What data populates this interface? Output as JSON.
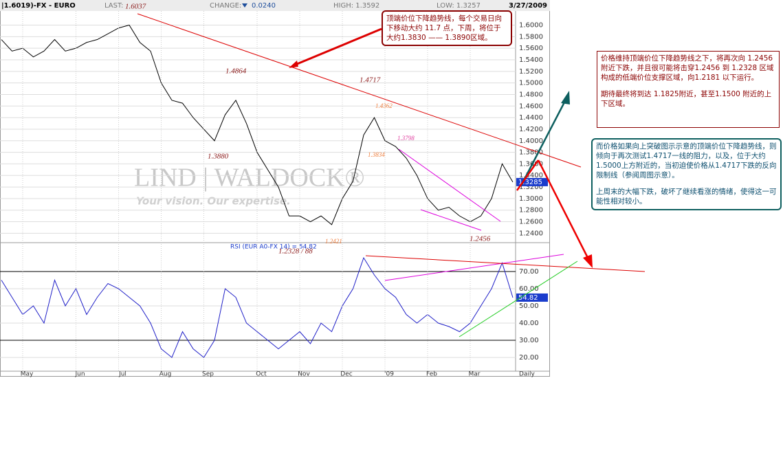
{
  "header": {
    "symbol": "|1.6019)-FX - EURO",
    "last_label": "LAST:",
    "change_label": "CHANGE:",
    "change": "0.0240",
    "high": "HIGH: 1.3592",
    "low": "LOW: 1.3257",
    "date": "3/27/2009"
  },
  "watermark": {
    "brand": "LIND | WALDOCK®",
    "tagline": "Your vision. Our expertise."
  },
  "chart_data": [
    {
      "type": "line",
      "color": "#000000",
      "values": [
        1.575,
        1.555,
        1.56,
        1.545,
        1.555,
        1.575,
        1.555,
        1.56,
        1.57,
        1.575,
        1.585,
        1.595,
        1.6,
        1.57,
        1.555,
        1.5,
        1.47,
        1.465,
        1.44,
        1.42,
        1.4,
        1.445,
        1.47,
        1.43,
        1.38,
        1.35,
        1.32,
        1.27,
        1.27,
        1.26,
        1.27,
        1.255,
        1.3,
        1.33,
        1.41,
        1.44,
        1.4,
        1.39,
        1.37,
        1.34,
        1.3,
        1.28,
        1.285,
        1.27,
        1.26,
        1.27,
        1.3,
        1.36,
        1.3285
      ],
      "ylim": [
        1.225,
        1.622
      ],
      "yticks": [
        {
          "value": 1.6,
          "label": "1.6000"
        },
        {
          "value": 1.58,
          "label": "1.5800"
        },
        {
          "value": 1.56,
          "label": "1.5600"
        },
        {
          "value": 1.54,
          "label": "1.5400"
        },
        {
          "value": 1.52,
          "label": "1.5200"
        },
        {
          "value": 1.5,
          "label": "1.5000"
        },
        {
          "value": 1.48,
          "label": "1.4800"
        },
        {
          "value": 1.46,
          "label": "1.4600"
        },
        {
          "value": 1.44,
          "label": "1.4400"
        },
        {
          "value": 1.42,
          "label": "1.4200"
        },
        {
          "value": 1.4,
          "label": "1.4000"
        },
        {
          "value": 1.38,
          "label": "1.3800"
        },
        {
          "value": 1.36,
          "label": "1.3600"
        },
        {
          "value": 1.34,
          "label": "1.3400"
        },
        {
          "value": 1.32,
          "label": "1.3200"
        },
        {
          "value": 1.3,
          "label": "1.3000"
        },
        {
          "value": 1.28,
          "label": "1.2800"
        },
        {
          "value": 1.26,
          "label": "1.2600"
        },
        {
          "value": 1.24,
          "label": "1.2400"
        }
      ],
      "grid": true,
      "annotations": [
        "1.6037",
        "1.4864",
        "1.3880",
        "1.4717",
        "1.4362",
        "1.3798",
        "1.3834",
        "1.2456",
        "1.2328 / 88",
        "1.2421"
      ]
    },
    {
      "type": "line",
      "title": "RSI (EUR A0-FX 14) = 54.82",
      "color": "#2020c8",
      "categories": [
        null,
        null,
        "May",
        null,
        null,
        null,
        null,
        "Jun",
        null,
        null,
        null,
        "Jul",
        null,
        null,
        null,
        "Aug",
        null,
        null,
        null,
        "Sep",
        null,
        null,
        null,
        null,
        "Oct",
        null,
        null,
        null,
        "Nov",
        null,
        null,
        null,
        "Dec",
        null,
        null,
        null,
        "'09",
        null,
        null,
        null,
        "Feb",
        null,
        null,
        null,
        "Mar",
        null,
        null,
        null,
        null
      ],
      "values": [
        65,
        55,
        45,
        50,
        40,
        65,
        50,
        60,
        45,
        55,
        63,
        60,
        55,
        50,
        40,
        25,
        20,
        35,
        25,
        20,
        30,
        60,
        55,
        40,
        35,
        30,
        25,
        30,
        35,
        28,
        40,
        35,
        50,
        60,
        78,
        68,
        60,
        55,
        45,
        40,
        45,
        40,
        38,
        35,
        40,
        50,
        60,
        75,
        54.82
      ],
      "ylim": [
        12,
        86
      ],
      "yticks": [
        {
          "value": 70,
          "label": "70.00"
        },
        {
          "value": 60,
          "label": "60.00"
        },
        {
          "value": 50,
          "label": "50.00"
        },
        {
          "value": 40,
          "label": "40.00"
        },
        {
          "value": 30,
          "label": "30.00"
        },
        {
          "value": 20,
          "label": "20.00"
        }
      ],
      "grid": true,
      "period": "Daily"
    }
  ],
  "notes": [
    {
      "paragraphs": [
        "顶端价位下降趋势线，每个交易日向下移动大约 11.7 点，下周，将位于大约1.3830 —— 1.3890区域。"
      ]
    },
    {
      "paragraphs": [
        "价格维持顶端价位下降趋势线之下，将再次向 1.2456附近下跌，并且很可能将击穿1.2456 到 1.2328 区域构成的低端价位支撑区域，向1.2181 以下运行。",
        "期待最终将到达 1.1825附近，甚至1.1500 附近的上下区域。"
      ]
    },
    {
      "paragraphs": [
        "而价格如果向上突破图示示意的顶端价位下降趋势线，则倾向于再次测试1.4717一线的阻力，以及，位于大约1.5000上方附近的，当初迫使价格从1.4717下跌的反向限制线（参阅周图示意）。",
        "上周末的大幅下跌，破坏了继续看涨的情绪，使得这一可能性相对较小。"
      ]
    }
  ]
}
